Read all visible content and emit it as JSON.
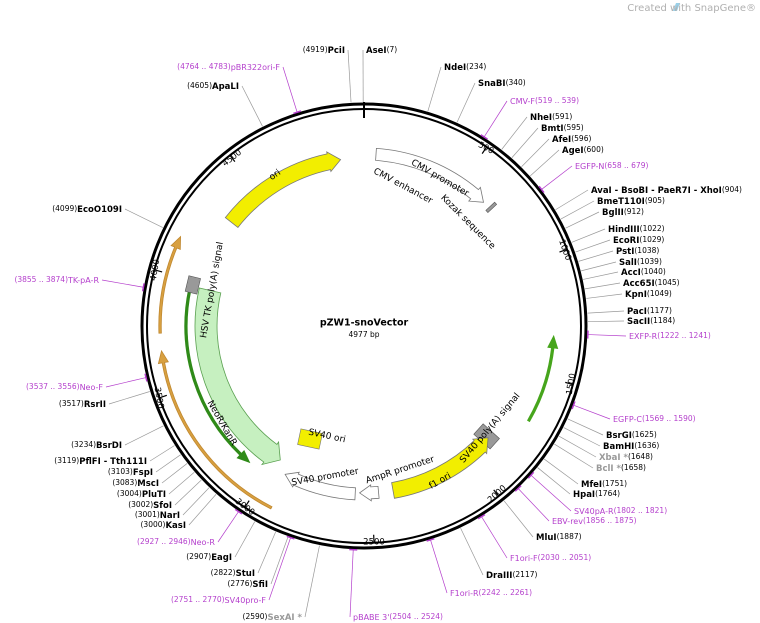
{
  "header": {
    "credit": "Created with SnapGene®"
  },
  "map": {
    "name": "pZW1-snoVector",
    "length": "4977 bp"
  },
  "enzymes": [
    {
      "name": "PciI",
      "site": "(4919)"
    },
    {
      "name": "AseI",
      "site": "(7)"
    },
    {
      "name": "NdeI",
      "site": "(234)"
    },
    {
      "name": "SnaBI",
      "site": "(340)"
    },
    {
      "name": "NheI",
      "site": "(591)"
    },
    {
      "name": "BmtI",
      "site": "(595)"
    },
    {
      "name": "AfeI",
      "site": "(596)"
    },
    {
      "name": "AgeI",
      "site": "(600)"
    },
    {
      "name": "AvaI - BsoBI - PaeR7I - XhoI",
      "site": "(904)"
    },
    {
      "name": "BmeT110I",
      "site": "(905)"
    },
    {
      "name": "BglII",
      "site": "(912)"
    },
    {
      "name": "HindIII",
      "site": "(1022)"
    },
    {
      "name": "EcoRI",
      "site": "(1029)"
    },
    {
      "name": "PstI",
      "site": "(1038)"
    },
    {
      "name": "SalI",
      "site": "(1039)"
    },
    {
      "name": "AccI",
      "site": "(1040)"
    },
    {
      "name": "Acc65I",
      "site": "(1045)"
    },
    {
      "name": "KpnI",
      "site": "(1049)"
    },
    {
      "name": "PacI",
      "site": "(1177)"
    },
    {
      "name": "SacII",
      "site": "(1184)"
    },
    {
      "name": "BsrGI",
      "site": "(1625)"
    },
    {
      "name": "BamHI",
      "site": "(1636)"
    },
    {
      "name": "XbaI *",
      "site": "(1648)"
    },
    {
      "name": "BclI *",
      "site": "(1658)"
    },
    {
      "name": "MfeI",
      "site": "(1751)"
    },
    {
      "name": "HpaI",
      "site": "(1764)"
    },
    {
      "name": "MluI",
      "site": "(1887)"
    },
    {
      "name": "DraIII",
      "site": "(2117)"
    },
    {
      "name": "SexAI *",
      "site": "(2590)"
    },
    {
      "name": "SfiI",
      "site": "(2776)"
    },
    {
      "name": "StuI",
      "site": "(2822)"
    },
    {
      "name": "EagI",
      "site": "(2907)"
    },
    {
      "name": "KasI",
      "site": "(3000)"
    },
    {
      "name": "NarI",
      "site": "(3001)"
    },
    {
      "name": "SfoI",
      "site": "(3002)"
    },
    {
      "name": "PluTI",
      "site": "(3004)"
    },
    {
      "name": "MscI",
      "site": "(3083)"
    },
    {
      "name": "FspI",
      "site": "(3103)"
    },
    {
      "name": "PflFI - Tth111I",
      "site": "(3119)"
    },
    {
      "name": "BsrDI",
      "site": "(3234)"
    },
    {
      "name": "RsrII",
      "site": "(3517)"
    },
    {
      "name": "EcoO109I",
      "site": "(4099)"
    },
    {
      "name": "ApaLI",
      "site": "(4605)"
    }
  ],
  "primers": [
    {
      "name": "pBR322ori-F",
      "range": "(4764 .. 4783)"
    },
    {
      "name": "CMV-F",
      "range": "(519 .. 539)"
    },
    {
      "name": "EGFP-N",
      "range": "(658 .. 679)"
    },
    {
      "name": "EXFP-R",
      "range": "(1222 .. 1241)"
    },
    {
      "name": "EGFP-C",
      "range": "(1569 .. 1590)"
    },
    {
      "name": "SV40pA-R",
      "range": "(1802 .. 1821)"
    },
    {
      "name": "EBV-rev",
      "range": "(1856 .. 1875)"
    },
    {
      "name": "F1ori-F",
      "range": "(2030 .. 2051)"
    },
    {
      "name": "F1ori-R",
      "range": "(2242 .. 2261)"
    },
    {
      "name": "pBABE 3'",
      "range": "(2504 .. 2524)"
    },
    {
      "name": "SV40pro-F",
      "range": "(2751 .. 2770)"
    },
    {
      "name": "Neo-R",
      "range": "(2927 .. 2946)"
    },
    {
      "name": "Neo-F",
      "range": "(3537 .. 3556)"
    },
    {
      "name": "TK-pA-R",
      "range": "(3855 .. 3874)"
    }
  ],
  "ticks": [
    500,
    1000,
    1500,
    2000,
    2500,
    3000,
    3500,
    4000,
    4500
  ],
  "features": [
    "ori",
    "CMV enhancer",
    "CMV promoter",
    "Kozak sequence",
    "HSV TK poly(A) signal",
    "NeoR/KanR",
    "SV40 ori",
    "SV40 promoter",
    "AmpR promoter",
    "f1 ori",
    "SV40 poly(A) signal"
  ]
}
